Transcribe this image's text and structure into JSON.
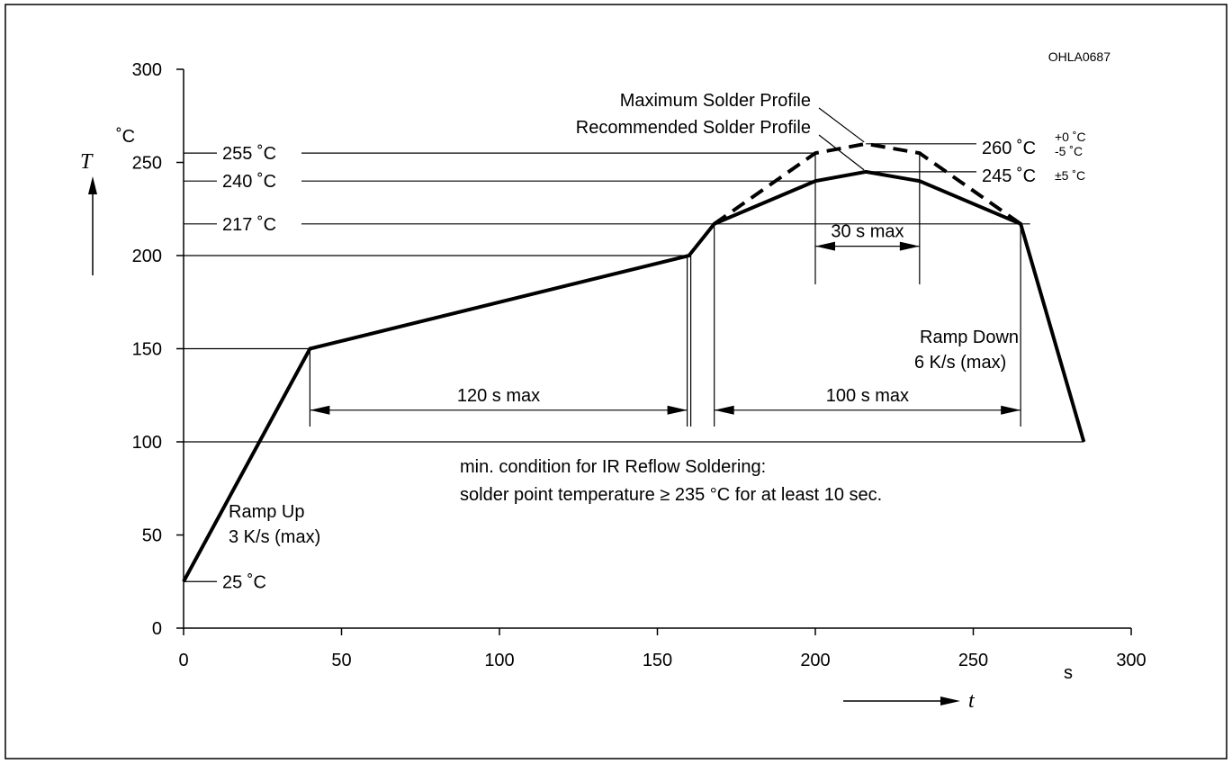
{
  "chart_data": {
    "type": "line",
    "figure_code": "OHLA0687",
    "x_axis": {
      "name": "t",
      "unit": "s",
      "range": [
        0,
        300
      ],
      "ticks": [
        0,
        50,
        100,
        150,
        200,
        250,
        300
      ],
      "tick_labels": [
        "0",
        "50",
        "100",
        "150",
        "200",
        "250",
        "300"
      ]
    },
    "y_axis": {
      "name": "T",
      "unit": "˚C",
      "range": [
        0,
        300
      ],
      "ticks": [
        0,
        50,
        100,
        150,
        200,
        250,
        300
      ],
      "tick_labels": [
        "0",
        "50",
        "100",
        "150",
        "200",
        "250",
        "300"
      ]
    },
    "series": [
      {
        "name": "Recommended Solder Profile",
        "style": "solid",
        "x": [
          0,
          40,
          160,
          168,
          200,
          216,
          233,
          265,
          285
        ],
        "y": [
          25,
          150,
          200,
          217,
          240,
          245,
          240,
          217,
          100
        ]
      },
      {
        "name": "Maximum Solder Profile",
        "style": "dashed",
        "x": [
          168,
          200,
          216,
          233,
          265
        ],
        "y": [
          217,
          255,
          260,
          255,
          217
        ]
      }
    ],
    "reference_lines": [
      {
        "label": "255 ˚C",
        "y": 255
      },
      {
        "label": "240 ˚C",
        "y": 240
      },
      {
        "label": "217 ˚C",
        "y": 217
      },
      {
        "label": "25 ˚C",
        "y": 25
      }
    ],
    "peak_labels": {
      "max_main": "260 ˚C",
      "max_plus": "+0 ˚C",
      "max_minus": "-5 ˚C",
      "rec_main": "245 ˚C",
      "rec_tol": "±5 ˚C"
    },
    "intervals": [
      {
        "label": "120 s max",
        "x_start": 40,
        "x_end": 160,
        "y": 117
      },
      {
        "label": "100 s max",
        "x_start": 168,
        "x_end": 265,
        "y": 117
      },
      {
        "label": "30 s max",
        "x_start": 200,
        "x_end": 233,
        "y": 205
      }
    ],
    "annotations": {
      "ramp_up_line1": "Ramp Up",
      "ramp_up_line2": "3 K/s (max)",
      "ramp_down_line1": "Ramp Down",
      "ramp_down_line2": "6 K/s (max)",
      "note_line1": "min. condition for IR Reflow Soldering:",
      "note_line2": "solder point temperature ≥ 235 °C for at least 10 sec."
    },
    "grid": false,
    "legend": "none (series labelled by annotations)"
  }
}
